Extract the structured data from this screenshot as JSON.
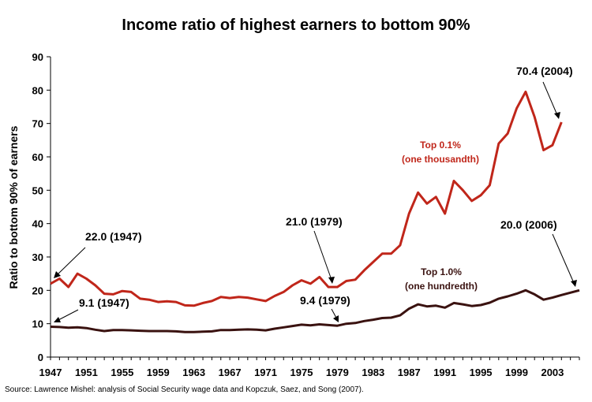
{
  "chart_data": {
    "type": "line",
    "title": "Income ratio of highest earners to bottom 90%",
    "ylabel": "Ratio to bottom 90% of earners",
    "xlabel": "",
    "ylim": [
      0,
      90
    ],
    "xlim": [
      1947,
      2006
    ],
    "yticks": [
      "0",
      "10",
      "20",
      "30",
      "40",
      "50",
      "60",
      "70",
      "80",
      "90"
    ],
    "xticks": [
      "1947",
      "1951",
      "1955",
      "1959",
      "1963",
      "1967",
      "1971",
      "1975",
      "1979",
      "1983",
      "1987",
      "1991",
      "1995",
      "1999",
      "2003"
    ],
    "grid": false,
    "series": [
      {
        "name_lines": [
          "Top 0.1%",
          "(one thousandth)"
        ],
        "color": "#c0261a",
        "x": [
          1947,
          1948,
          1949,
          1950,
          1951,
          1952,
          1953,
          1954,
          1955,
          1956,
          1957,
          1958,
          1959,
          1960,
          1961,
          1962,
          1963,
          1964,
          1965,
          1966,
          1967,
          1968,
          1969,
          1970,
          1971,
          1972,
          1973,
          1974,
          1975,
          1976,
          1977,
          1978,
          1979,
          1980,
          1981,
          1982,
          1983,
          1984,
          1985,
          1986,
          1987,
          1988,
          1989,
          1990,
          1991,
          1992,
          1993,
          1994,
          1995,
          1996,
          1997,
          1998,
          1999,
          2000,
          2001,
          2002,
          2003,
          2004
        ],
        "values": [
          22.0,
          23.5,
          21.0,
          25.0,
          23.5,
          21.5,
          19.0,
          18.8,
          19.8,
          19.5,
          17.5,
          17.2,
          16.5,
          16.7,
          16.5,
          15.5,
          15.4,
          16.2,
          16.8,
          18.0,
          17.7,
          18.0,
          17.8,
          17.3,
          16.8,
          18.3,
          19.5,
          21.5,
          23.0,
          22.0,
          24.0,
          21.0,
          21.0,
          22.8,
          23.2,
          26.0,
          28.5,
          31.0,
          31.0,
          33.5,
          43.0,
          49.3,
          46.0,
          48.0,
          43.0,
          52.8,
          50.0,
          46.8,
          48.5,
          51.5,
          64.0,
          67.0,
          74.5,
          79.5,
          72.0,
          62.0,
          63.5,
          70.4
        ]
      },
      {
        "name_lines": [
          "Top 1.0%",
          "(one hundredth)"
        ],
        "color": "#3a1210",
        "x": [
          1947,
          1948,
          1949,
          1950,
          1951,
          1952,
          1953,
          1954,
          1955,
          1956,
          1957,
          1958,
          1959,
          1960,
          1961,
          1962,
          1963,
          1964,
          1965,
          1966,
          1967,
          1968,
          1969,
          1970,
          1971,
          1972,
          1973,
          1974,
          1975,
          1976,
          1977,
          1978,
          1979,
          1980,
          1981,
          1982,
          1983,
          1984,
          1985,
          1986,
          1987,
          1988,
          1989,
          1990,
          1991,
          1992,
          1993,
          1994,
          1995,
          1996,
          1997,
          1998,
          1999,
          2000,
          2001,
          2002,
          2003,
          2004,
          2005,
          2006
        ],
        "values": [
          9.1,
          9.0,
          8.8,
          8.9,
          8.7,
          8.2,
          7.8,
          8.1,
          8.1,
          8.0,
          7.9,
          7.8,
          7.8,
          7.8,
          7.7,
          7.5,
          7.5,
          7.6,
          7.7,
          8.1,
          8.1,
          8.2,
          8.3,
          8.2,
          8.0,
          8.5,
          8.9,
          9.3,
          9.7,
          9.5,
          9.8,
          9.6,
          9.4,
          10.0,
          10.2,
          10.8,
          11.2,
          11.7,
          11.8,
          12.5,
          14.5,
          15.8,
          15.2,
          15.4,
          14.8,
          16.2,
          15.8,
          15.3,
          15.6,
          16.3,
          17.5,
          18.2,
          19.0,
          20.0,
          18.8,
          17.2,
          17.8,
          18.6,
          19.3,
          20.0
        ]
      }
    ],
    "annotations": [
      {
        "text": "22.0 (1947)"
      },
      {
        "text": "9.1 (1947)"
      },
      {
        "text": "21.0 (1979)"
      },
      {
        "text": "9.4 (1979)"
      },
      {
        "text": "70.4 (2004)"
      },
      {
        "text": "20.0 (2006)"
      }
    ],
    "source": "Source: Lawrence Mishel: analysis of Social Security wage data and Kopczuk, Saez, and Song (2007)."
  }
}
